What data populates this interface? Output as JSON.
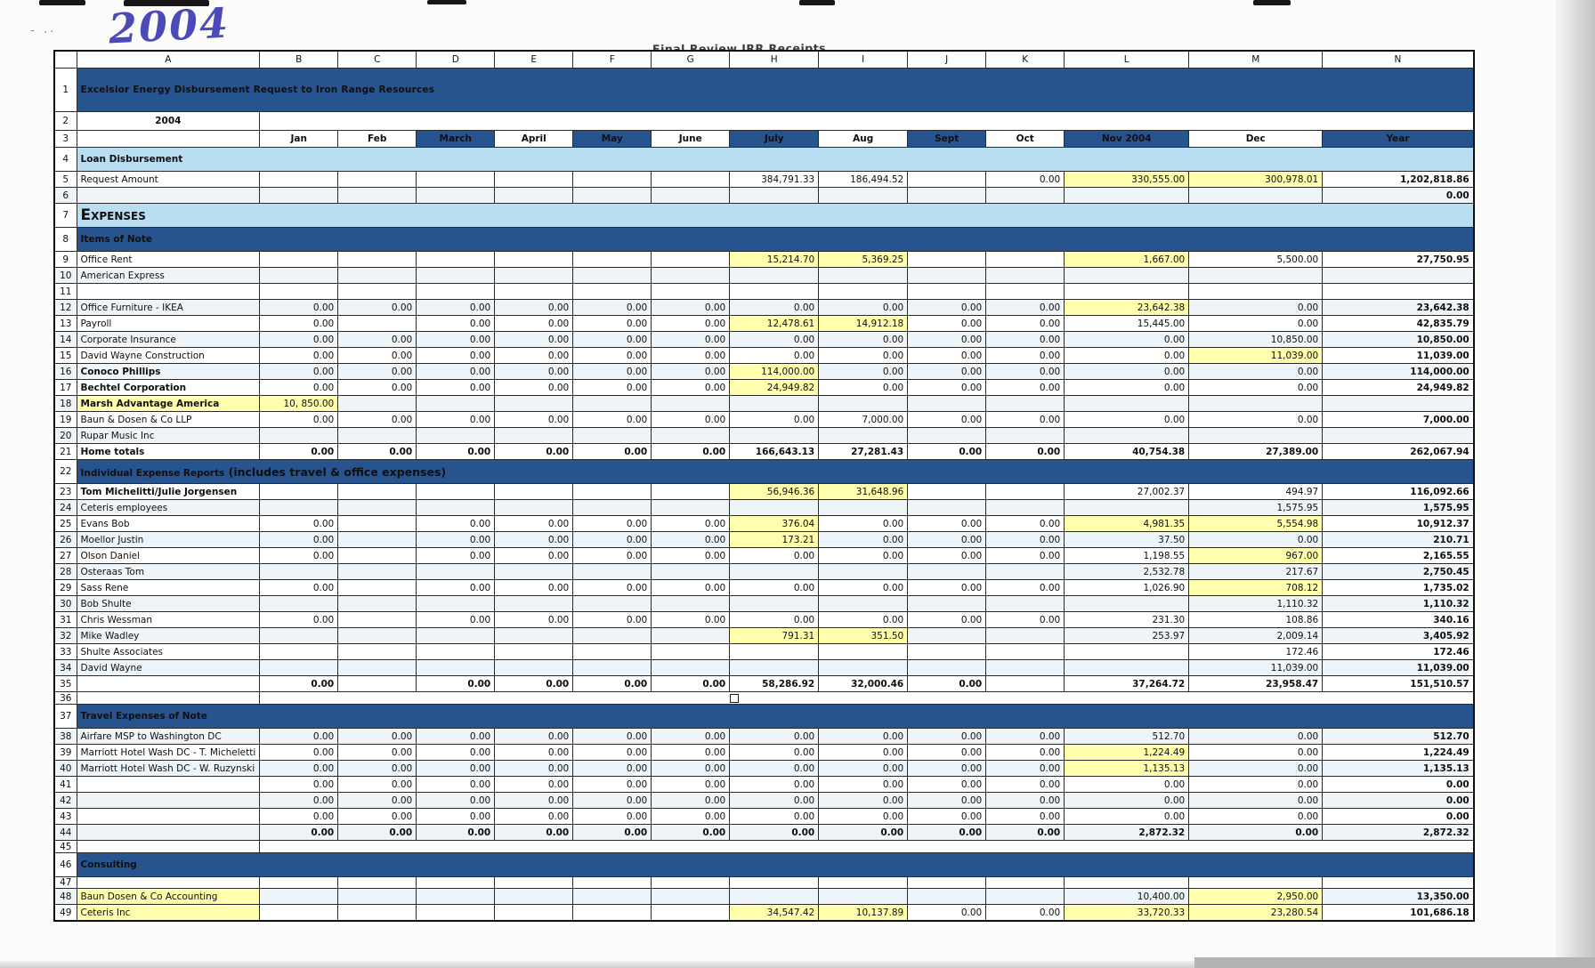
{
  "sheet": {
    "handwritten_note": "2004",
    "stamp": "Final Review IRR Receipts",
    "colors": {
      "navy": "#27548f",
      "light_blue": "#b9def2",
      "highlight": "#ffffae",
      "red": "#d6431a"
    },
    "column_letters": [
      "A",
      "B",
      "C",
      "D",
      "E",
      "F",
      "G",
      "H",
      "I",
      "J",
      "K",
      "L",
      "M",
      "N"
    ],
    "months": [
      {
        "t": "Jan",
        "d": 0
      },
      {
        "t": "Feb",
        "d": 0
      },
      {
        "t": "March",
        "d": 1
      },
      {
        "t": "April",
        "d": 0
      },
      {
        "t": "May",
        "d": 1
      },
      {
        "t": "June",
        "d": 0
      },
      {
        "t": "July",
        "d": 1
      },
      {
        "t": "Aug",
        "d": 0
      },
      {
        "t": "Sept",
        "d": 1
      },
      {
        "t": "Oct",
        "d": 0
      },
      {
        "t": "Nov 2004",
        "d": 1
      },
      {
        "t": "Dec",
        "d": 0
      },
      {
        "t": "Year",
        "d": 1
      }
    ],
    "rows": [
      {
        "n": 1,
        "t": "title",
        "label": "Excelsior Energy Disbursement Request to Iron Range Resources"
      },
      {
        "n": 2,
        "t": "year",
        "label": "2004"
      },
      {
        "n": 3,
        "t": "months"
      },
      {
        "n": 4,
        "t": "sec_l",
        "label": "Loan Disbursement"
      },
      {
        "n": 5,
        "t": "data",
        "label": "Request Amount",
        "cells": [
          null,
          null,
          null,
          null,
          null,
          null,
          "384,791.33",
          "186,494.52",
          null,
          "0.00",
          {
            "v": "330,555.00",
            "s": "h"
          },
          {
            "v": "300,978.01",
            "s": "h"
          },
          "1,202,818.86"
        ]
      },
      {
        "n": 6,
        "t": "data",
        "label": "",
        "cells": [
          null,
          null,
          null,
          null,
          null,
          null,
          null,
          null,
          null,
          null,
          null,
          null,
          "0.00"
        ]
      },
      {
        "n": 7,
        "t": "sec_l",
        "label": "Expenses",
        "caps": 1
      },
      {
        "n": 8,
        "t": "sec_d",
        "label": "Items of Note"
      },
      {
        "n": 9,
        "t": "data",
        "label": "Office Rent",
        "cells": [
          null,
          null,
          null,
          null,
          null,
          null,
          {
            "v": "15,214.70",
            "s": "h"
          },
          {
            "v": "5,369.25",
            "s": "h"
          },
          null,
          null,
          {
            "v": "1,667.00",
            "s": "h"
          },
          "5,500.00",
          "27,750.95"
        ]
      },
      {
        "n": 10,
        "t": "data",
        "label": "American Express",
        "cells": [
          null,
          null,
          null,
          null,
          null,
          null,
          null,
          null,
          null,
          null,
          null,
          null,
          null
        ]
      },
      {
        "n": 11,
        "t": "data",
        "label": "",
        "cells": [
          null,
          null,
          null,
          null,
          null,
          null,
          null,
          null,
          null,
          null,
          null,
          null,
          null
        ]
      },
      {
        "n": 12,
        "t": "data",
        "label": "Office Furniture - IKEA",
        "cells": [
          "0.00",
          "0.00",
          "0.00",
          "0.00",
          "0.00",
          "0.00",
          "0.00",
          "0.00",
          "0.00",
          "0.00",
          {
            "v": "23,642.38",
            "s": "hr"
          },
          "0.00",
          "23,642.38"
        ]
      },
      {
        "n": 13,
        "t": "data",
        "label": "Payroll",
        "cells": [
          "0.00",
          null,
          "0.00",
          "0.00",
          "0.00",
          "0.00",
          {
            "v": "12,478.61",
            "s": "h"
          },
          {
            "v": "14,912.18",
            "s": "h"
          },
          "0.00",
          "0.00",
          "15,445.00",
          "0.00",
          "42,835.79"
        ]
      },
      {
        "n": 14,
        "t": "data",
        "label": "Corporate Insurance",
        "cells": [
          "0.00",
          "0.00",
          "0.00",
          "0.00",
          "0.00",
          "0.00",
          "0.00",
          "0.00",
          "0.00",
          "0.00",
          "0.00",
          "10,850.00",
          "10,850.00"
        ]
      },
      {
        "n": 15,
        "t": "data",
        "label": "David Wayne Construction",
        "cells": [
          "0.00",
          "0.00",
          "0.00",
          "0.00",
          "0.00",
          "0.00",
          "0.00",
          "0.00",
          "0.00",
          "0.00",
          "0.00",
          {
            "v": "11,039.00",
            "s": "h"
          },
          "11,039.00"
        ]
      },
      {
        "n": 16,
        "t": "data",
        "label": "Conoco Phillips",
        "lb": 1,
        "cells": [
          "0.00",
          "0.00",
          "0.00",
          "0.00",
          "0.00",
          "0.00",
          {
            "v": "114,000.00",
            "s": "h"
          },
          "0.00",
          "0.00",
          "0.00",
          "0.00",
          "0.00",
          "114,000.00"
        ]
      },
      {
        "n": 17,
        "t": "data",
        "label": "Bechtel Corporation",
        "lb": 1,
        "cells": [
          "0.00",
          "0.00",
          "0.00",
          "0.00",
          "0.00",
          "0.00",
          {
            "v": "24,949.82",
            "s": "h"
          },
          "0.00",
          "0.00",
          "0.00",
          "0.00",
          "0.00",
          "24,949.82"
        ]
      },
      {
        "n": 18,
        "t": "data",
        "label": "Marsh Advantage America",
        "lb": 1,
        "lh": 1,
        "cells": [
          {
            "v": "10, 850.00",
            "s": "h"
          },
          null,
          null,
          null,
          null,
          null,
          null,
          null,
          null,
          null,
          null,
          null,
          null
        ]
      },
      {
        "n": 19,
        "t": "data",
        "label": "Baun & Dosen & Co LLP",
        "cells": [
          "0.00",
          "0.00",
          "0.00",
          "0.00",
          "0.00",
          "0.00",
          "0.00",
          "7,000.00",
          "0.00",
          "0.00",
          "0.00",
          "0.00",
          "7,000.00"
        ]
      },
      {
        "n": 20,
        "t": "data",
        "label": "Rupar Music Inc",
        "cells": [
          null,
          null,
          null,
          null,
          null,
          null,
          null,
          null,
          null,
          null,
          null,
          null,
          null
        ]
      },
      {
        "n": 21,
        "t": "data",
        "label": "Home totals",
        "lb": 1,
        "vb": 1,
        "cells": [
          "0.00",
          "0.00",
          "0.00",
          "0.00",
          "0.00",
          "0.00",
          "166,643.13",
          "27,281.43",
          "0.00",
          "0.00",
          "40,754.38",
          "27,389.00",
          "262,067.94"
        ]
      },
      {
        "n": 22,
        "t": "sec_d",
        "label": "Individual Expense Reports",
        "sub": "(includes travel & office expenses)"
      },
      {
        "n": 23,
        "t": "data",
        "label": "Tom Michelitti/Julie Jorgensen",
        "lb": 1,
        "cells": [
          null,
          null,
          null,
          null,
          null,
          null,
          {
            "v": "56,946.36",
            "s": "h"
          },
          {
            "v": "31,648.96",
            "s": "hr"
          },
          null,
          null,
          "27,002.37",
          "494.97",
          "116,092.66"
        ]
      },
      {
        "n": 24,
        "t": "data",
        "label": "Ceteris employees",
        "cells": [
          null,
          null,
          null,
          null,
          null,
          null,
          null,
          null,
          null,
          null,
          null,
          "1,575.95",
          "1,575.95"
        ]
      },
      {
        "n": 25,
        "t": "data",
        "label": "Evans Bob",
        "cells": [
          "0.00",
          null,
          "0.00",
          "0.00",
          "0.00",
          "0.00",
          {
            "v": "376.04",
            "s": "h"
          },
          "0.00",
          "0.00",
          "0.00",
          {
            "v": "4,981.35",
            "s": "h"
          },
          {
            "v": "5,554.98",
            "s": "h"
          },
          "10,912.37"
        ]
      },
      {
        "n": 26,
        "t": "data",
        "label": "Moellor Justin",
        "cells": [
          "0.00",
          null,
          "0.00",
          "0.00",
          "0.00",
          "0.00",
          {
            "v": "173.21",
            "s": "h"
          },
          "0.00",
          "0.00",
          "0.00",
          "37.50",
          "0.00",
          "210.71"
        ]
      },
      {
        "n": 27,
        "t": "data",
        "label": "Olson Daniel",
        "cells": [
          "0.00",
          null,
          "0.00",
          "0.00",
          "0.00",
          "0.00",
          "0.00",
          "0.00",
          "0.00",
          "0.00",
          "1,198.55",
          {
            "v": "967.00",
            "s": "h"
          },
          "2,165.55"
        ]
      },
      {
        "n": 28,
        "t": "data",
        "label": "Osteraas Tom",
        "cells": [
          null,
          null,
          null,
          null,
          null,
          null,
          null,
          null,
          null,
          null,
          "2,532.78",
          "217.67",
          "2,750.45"
        ]
      },
      {
        "n": 29,
        "t": "data",
        "label": "Sass Rene",
        "cells": [
          "0.00",
          null,
          "0.00",
          "0.00",
          "0.00",
          "0.00",
          "0.00",
          "0.00",
          "0.00",
          "0.00",
          "1,026.90",
          {
            "v": "708.12",
            "s": "h"
          },
          "1,735.02"
        ]
      },
      {
        "n": 30,
        "t": "data",
        "label": "Bob Shulte",
        "cells": [
          null,
          null,
          null,
          null,
          null,
          null,
          null,
          null,
          null,
          null,
          null,
          "1,110.32",
          "1,110.32"
        ]
      },
      {
        "n": 31,
        "t": "data",
        "label": "Chris Wessman",
        "cells": [
          "0.00",
          null,
          "0.00",
          "0.00",
          "0.00",
          "0.00",
          "0.00",
          "0.00",
          "0.00",
          "0.00",
          "231.30",
          "108.86",
          "340.16"
        ]
      },
      {
        "n": 32,
        "t": "data",
        "label": "Mike Wadley",
        "cells": [
          null,
          null,
          null,
          null,
          null,
          null,
          {
            "v": "791.31",
            "s": "h"
          },
          {
            "v": "351.50",
            "s": "hr"
          },
          null,
          null,
          "253.97",
          "2,009.14",
          "3,405.92"
        ]
      },
      {
        "n": 33,
        "t": "data",
        "label": "Shulte Associates",
        "cells": [
          null,
          null,
          null,
          null,
          null,
          null,
          null,
          null,
          null,
          null,
          null,
          "172.46",
          "172.46"
        ]
      },
      {
        "n": 34,
        "t": "data",
        "label": "David Wayne",
        "cells": [
          null,
          null,
          null,
          null,
          null,
          null,
          null,
          null,
          null,
          null,
          null,
          "11,039.00",
          "11,039.00"
        ]
      },
      {
        "n": 35,
        "t": "data",
        "label": "",
        "vb": 1,
        "cells": [
          "0.00",
          null,
          "0.00",
          "0.00",
          "0.00",
          "0.00",
          "58,286.92",
          "32,000.46",
          "0.00",
          null,
          "37,264.72",
          "23,958.47",
          "151,510.57"
        ]
      },
      {
        "n": 36,
        "t": "gap",
        "marker": 1
      },
      {
        "n": 37,
        "t": "sec_d",
        "label": "Travel Expenses of Note"
      },
      {
        "n": 38,
        "t": "data",
        "label": "Airfare MSP to Washington DC",
        "cells": [
          "0.00",
          "0.00",
          "0.00",
          "0.00",
          "0.00",
          "0.00",
          "0.00",
          "0.00",
          "0.00",
          "0.00",
          "512.70",
          "0.00",
          "512.70"
        ]
      },
      {
        "n": 39,
        "t": "data",
        "label": "Marriott Hotel Wash DC - T. Micheletti",
        "cells": [
          "0.00",
          "0.00",
          "0.00",
          "0.00",
          "0.00",
          "0.00",
          "0.00",
          "0.00",
          "0.00",
          "0.00",
          {
            "v": "1,224.49",
            "s": "h"
          },
          "0.00",
          "1,224.49"
        ]
      },
      {
        "n": 40,
        "t": "data",
        "label": "Marriott Hotel Wash DC - W. Ruzynski",
        "cells": [
          "0.00",
          "0.00",
          "0.00",
          "0.00",
          "0.00",
          "0.00",
          "0.00",
          "0.00",
          "0.00",
          "0.00",
          {
            "v": "1,135.13",
            "s": "h"
          },
          "0.00",
          "1,135.13"
        ]
      },
      {
        "n": 41,
        "t": "data",
        "label": "",
        "cells": [
          "0.00",
          "0.00",
          "0.00",
          "0.00",
          "0.00",
          "0.00",
          "0.00",
          "0.00",
          "0.00",
          "0.00",
          "0.00",
          "0.00",
          "0.00"
        ]
      },
      {
        "n": 42,
        "t": "data",
        "label": "",
        "cells": [
          "0.00",
          "0.00",
          "0.00",
          "0.00",
          "0.00",
          "0.00",
          "0.00",
          "0.00",
          "0.00",
          "0.00",
          "0.00",
          "0.00",
          "0.00"
        ]
      },
      {
        "n": 43,
        "t": "data",
        "label": "",
        "cells": [
          "0.00",
          "0.00",
          "0.00",
          "0.00",
          "0.00",
          "0.00",
          "0.00",
          "0.00",
          "0.00",
          "0.00",
          "0.00",
          "0.00",
          "0.00"
        ]
      },
      {
        "n": 44,
        "t": "data",
        "label": "",
        "vb": 1,
        "cells": [
          "0.00",
          "0.00",
          "0.00",
          "0.00",
          "0.00",
          "0.00",
          "0.00",
          "0.00",
          "0.00",
          "0.00",
          "2,872.32",
          "0.00",
          "2,872.32"
        ]
      },
      {
        "n": 45,
        "t": "gap"
      },
      {
        "n": 46,
        "t": "sec_d",
        "label": "Consulting"
      },
      {
        "n": 47,
        "t": "data",
        "label": "",
        "cells": [
          null,
          null,
          null,
          null,
          null,
          null,
          null,
          null,
          null,
          null,
          null,
          null,
          null
        ]
      },
      {
        "n": 48,
        "t": "data",
        "label": "Baun Dosen & Co Accounting",
        "lh": 1,
        "cells": [
          null,
          null,
          null,
          null,
          null,
          null,
          null,
          null,
          null,
          null,
          "10,400.00",
          {
            "v": "2,950.00",
            "s": "h"
          },
          "13,350.00"
        ]
      },
      {
        "n": 49,
        "t": "data",
        "label": "Ceteris Inc",
        "lh": 1,
        "cells": [
          null,
          null,
          null,
          null,
          null,
          null,
          {
            "v": "34,547.42",
            "s": "h"
          },
          {
            "v": "10,137.89",
            "s": "h"
          },
          "0.00",
          "0.00",
          {
            "v": "33,720.33",
            "s": "h"
          },
          {
            "v": "23,280.54",
            "s": "h"
          },
          "101,686.18"
        ]
      }
    ]
  }
}
